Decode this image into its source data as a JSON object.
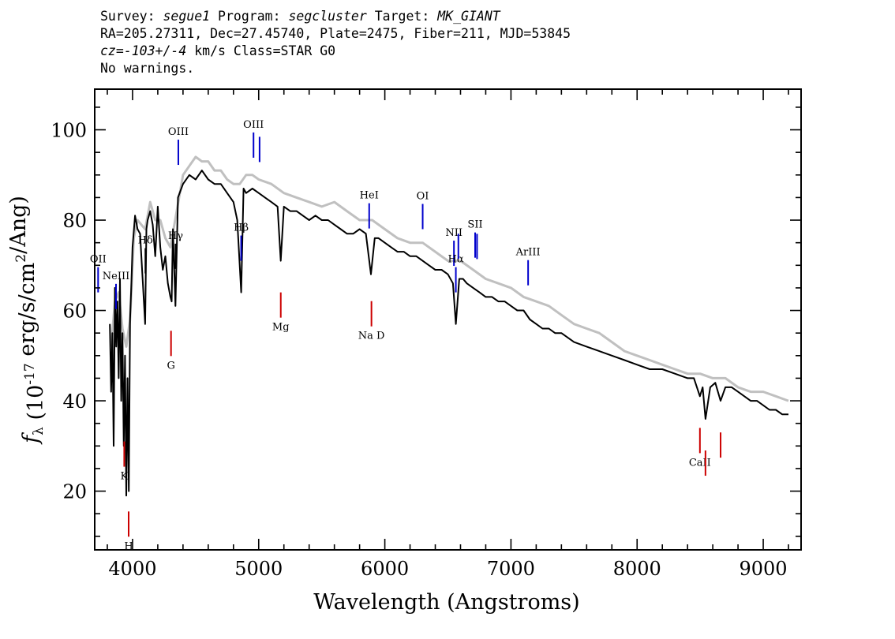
{
  "header": {
    "line1": {
      "survey_label": "Survey:",
      "survey": "segue1",
      "program_label": "Program:",
      "program": "segcluster",
      "target_label": "Target:",
      "target": "MK_GIANT"
    },
    "line2": "RA=205.27311, Dec=27.45740, Plate=2475, Fiber=211, MJD=53845",
    "line3": {
      "cz_label": "cz=",
      "cz": "-103+/-4",
      "cz_units": "km/s",
      "class": "Class=STAR G0"
    },
    "line4": "No warnings."
  },
  "chart_data": {
    "type": "line",
    "xlabel": "Wavelength (Angstroms)",
    "ylabel": "f_λ (10^-17 erg/s/cm^2/Ang)",
    "xlim": [
      3700,
      9300
    ],
    "ylim": [
      7,
      109
    ],
    "x_ticks": [
      4000,
      5000,
      6000,
      7000,
      8000,
      9000
    ],
    "y_ticks": [
      20,
      40,
      60,
      80,
      100
    ],
    "series": [
      {
        "style": "flux",
        "color": "#000000",
        "x": [
          3820,
          3830,
          3840,
          3850,
          3860,
          3870,
          3880,
          3890,
          3900,
          3910,
          3920,
          3930,
          3940,
          3950,
          3960,
          3970,
          3980,
          3990,
          4000,
          4020,
          4040,
          4060,
          4080,
          4100,
          4110,
          4120,
          4140,
          4160,
          4180,
          4200,
          4220,
          4240,
          4260,
          4280,
          4300,
          4310,
          4320,
          4340,
          4360,
          4400,
          4450,
          4500,
          4550,
          4600,
          4650,
          4700,
          4750,
          4800,
          4830,
          4861,
          4880,
          4900,
          4950,
          5000,
          5050,
          5100,
          5150,
          5175,
          5200,
          5250,
          5300,
          5350,
          5400,
          5450,
          5500,
          5550,
          5600,
          5650,
          5700,
          5750,
          5800,
          5850,
          5890,
          5920,
          5950,
          6000,
          6050,
          6100,
          6150,
          6200,
          6250,
          6300,
          6350,
          6400,
          6450,
          6500,
          6540,
          6563,
          6590,
          6620,
          6650,
          6700,
          6750,
          6800,
          6850,
          6900,
          6950,
          7000,
          7050,
          7100,
          7150,
          7200,
          7250,
          7300,
          7350,
          7400,
          7500,
          7600,
          7700,
          7800,
          7900,
          8000,
          8100,
          8200,
          8300,
          8400,
          8450,
          8498,
          8520,
          8542,
          8580,
          8620,
          8662,
          8700,
          8750,
          8800,
          8850,
          8900,
          8950,
          9000,
          9050,
          9100,
          9150,
          9200
        ],
        "y": [
          57,
          42,
          55,
          30,
          65,
          52,
          62,
          45,
          67,
          40,
          55,
          30,
          50,
          19,
          45,
          20,
          58,
          65,
          74,
          81,
          78,
          77,
          67,
          57,
          78,
          80,
          82,
          79,
          72,
          83,
          74,
          69,
          72,
          66,
          63,
          62,
          78,
          61,
          85,
          88,
          90,
          89,
          91,
          89,
          88,
          88,
          86,
          84,
          80,
          64,
          87,
          86,
          87,
          86,
          85,
          84,
          83,
          71,
          83,
          82,
          82,
          81,
          80,
          81,
          80,
          80,
          79,
          78,
          77,
          77,
          78,
          77,
          68,
          76,
          76,
          75,
          74,
          73,
          73,
          72,
          72,
          71,
          70,
          69,
          69,
          68,
          66,
          57,
          67,
          67,
          66,
          65,
          64,
          63,
          63,
          62,
          62,
          61,
          60,
          60,
          58,
          57,
          56,
          56,
          55,
          55,
          53,
          52,
          51,
          50,
          49,
          48,
          47,
          47,
          46,
          45,
          45,
          41,
          43,
          36,
          43,
          44,
          40,
          43,
          43,
          42,
          41,
          40,
          40,
          39,
          38,
          38,
          37,
          37
        ]
      },
      {
        "style": "error",
        "color": "#c0c0c0",
        "x": [
          3830,
          3860,
          3890,
          3920,
          3950,
          3980,
          4010,
          4040,
          4070,
          4100,
          4140,
          4180,
          4220,
          4260,
          4300,
          4350,
          4400,
          4450,
          4500,
          4550,
          4600,
          4650,
          4700,
          4750,
          4800,
          4850,
          4900,
          4950,
          5000,
          5100,
          5200,
          5300,
          5400,
          5500,
          5600,
          5700,
          5800,
          5900,
          6000,
          6100,
          6200,
          6300,
          6400,
          6500,
          6600,
          6700,
          6800,
          6900,
          7000,
          7100,
          7200,
          7300,
          7400,
          7500,
          7600,
          7700,
          7800,
          7900,
          8000,
          8100,
          8200,
          8300,
          8400,
          8500,
          8600,
          8700,
          8800,
          8900,
          9000,
          9100,
          9200
        ],
        "y": [
          52,
          62,
          64,
          56,
          52,
          58,
          76,
          80,
          79,
          78,
          84,
          80,
          80,
          76,
          74,
          82,
          90,
          92,
          94,
          93,
          93,
          91,
          91,
          89,
          88,
          88,
          90,
          90,
          89,
          88,
          86,
          85,
          84,
          83,
          84,
          82,
          80,
          80,
          78,
          76,
          75,
          75,
          73,
          71,
          71,
          69,
          67,
          66,
          65,
          63,
          62,
          61,
          59,
          57,
          56,
          55,
          53,
          51,
          50,
          49,
          48,
          47,
          46,
          46,
          45,
          45,
          43,
          42,
          42,
          41,
          40
        ]
      }
    ],
    "lines": [
      {
        "label": "OII",
        "x": 3727,
        "color": "#0000cc",
        "kind": "emission"
      },
      {
        "label": "NeIII",
        "x": 3869,
        "color": "#0000cc",
        "kind": "emission"
      },
      {
        "label": "Hδ",
        "x": 4102,
        "color": "#000000",
        "kind": "emission"
      },
      {
        "label": "Hγ",
        "x": 4341,
        "color": "#000000",
        "kind": "emission"
      },
      {
        "label": "OIII",
        "x": 4363,
        "color": "#0000cc",
        "kind": "emission"
      },
      {
        "label": "Hβ",
        "x": 4861,
        "color": "#0000cc",
        "kind": "emission"
      },
      {
        "label": "OIII",
        "x": 4959,
        "color": "#0000cc",
        "kind": "emission"
      },
      {
        "label": "OIII",
        "x": 5007,
        "color": "#0000cc",
        "kind": "emission"
      },
      {
        "label": "HeI",
        "x": 5876,
        "color": "#0000cc",
        "kind": "emission"
      },
      {
        "label": "OI",
        "x": 6300,
        "color": "#0000cc",
        "kind": "emission"
      },
      {
        "label": "NII",
        "x": 6548,
        "color": "#0000cc",
        "kind": "emission"
      },
      {
        "label": "Hα",
        "x": 6563,
        "color": "#0000cc",
        "kind": "emission"
      },
      {
        "label": "NII",
        "x": 6583,
        "color": "#0000cc",
        "kind": "emission"
      },
      {
        "label": "SII",
        "x": 6716,
        "color": "#0000cc",
        "kind": "emission"
      },
      {
        "label": "SII",
        "x": 6731,
        "color": "#0000cc",
        "kind": "emission"
      },
      {
        "label": "ArIII",
        "x": 7136,
        "color": "#0000cc",
        "kind": "emission"
      },
      {
        "label": "K",
        "x": 3934,
        "color": "#cc0000",
        "kind": "absorption"
      },
      {
        "label": "H",
        "x": 3969,
        "color": "#cc0000",
        "kind": "absorption"
      },
      {
        "label": "G",
        "x": 4305,
        "color": "#cc0000",
        "kind": "absorption"
      },
      {
        "label": "Mg",
        "x": 5175,
        "color": "#cc0000",
        "kind": "absorption"
      },
      {
        "label": "Na D",
        "x": 5894,
        "color": "#cc0000",
        "kind": "absorption"
      },
      {
        "label": "CaII",
        "x": 8498,
        "color": "#cc0000",
        "kind": "absorption"
      },
      {
        "label": "CaII",
        "x": 8542,
        "color": "#cc0000",
        "kind": "absorption"
      },
      {
        "label": "CaII",
        "x": 8662,
        "color": "#cc0000",
        "kind": "absorption"
      }
    ]
  }
}
